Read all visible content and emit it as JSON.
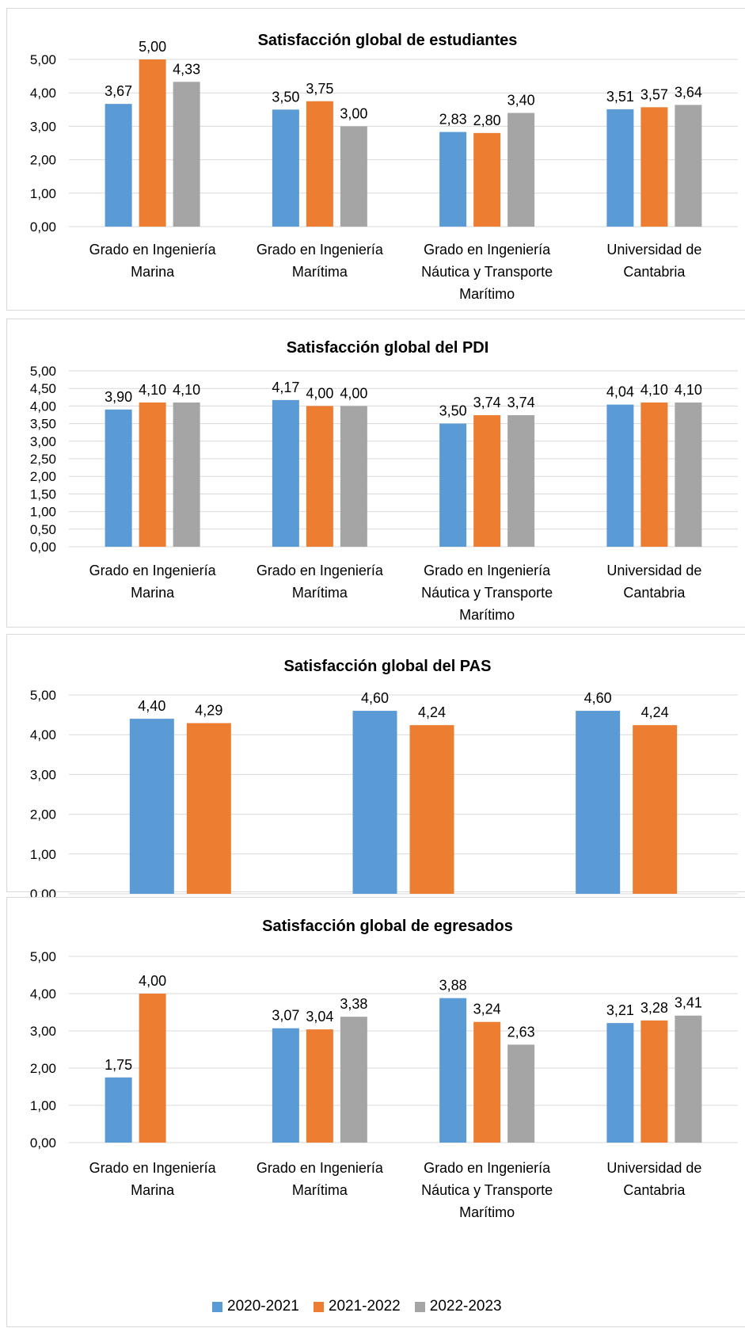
{
  "colors": {
    "series_2020_2021": "#5b9bd5",
    "series_2021_2022": "#ed7d31",
    "series_2022_2023": "#a5a5a5",
    "gridline": "#d9d9d9"
  },
  "legend": {
    "items": [
      {
        "label": "2020-2021",
        "color": "#5b9bd5"
      },
      {
        "label": "2021-2022",
        "color": "#ed7d31"
      },
      {
        "label": "2022-2023",
        "color": "#a5a5a5"
      }
    ]
  },
  "chart_data": [
    {
      "type": "bar",
      "title": "Satisfacción global de estudiantes",
      "categories": [
        [
          "Grado en Ingeniería",
          "Marina"
        ],
        [
          "Grado en Ingeniería",
          "Marítima"
        ],
        [
          "Grado en Ingeniería",
          "Náutica y Transporte",
          "Marítimo"
        ],
        [
          "Universidad de",
          "Cantabria"
        ]
      ],
      "series": [
        {
          "name": "2020-2021",
          "values": [
            3.67,
            3.5,
            2.83,
            3.51
          ],
          "labels": [
            "3,67",
            "3,50",
            "2,83",
            "3,51"
          ]
        },
        {
          "name": "2021-2022",
          "values": [
            5.0,
            3.75,
            2.8,
            3.57
          ],
          "labels": [
            "5,00",
            "3,75",
            "2,80",
            "3,57"
          ]
        },
        {
          "name": "2022-2023",
          "values": [
            4.33,
            3.0,
            3.4,
            3.64
          ],
          "labels": [
            "4,33",
            "3,00",
            "3,40",
            "3,64"
          ]
        }
      ],
      "yticks": [
        "0,00",
        "1,00",
        "2,00",
        "3,00",
        "4,00",
        "5,00"
      ],
      "ylim": [
        0,
        5
      ],
      "grid": true
    },
    {
      "type": "bar",
      "title": "Satisfacción global del PDI",
      "categories": [
        [
          "Grado en Ingeniería",
          "Marina"
        ],
        [
          "Grado en Ingeniería",
          "Marítima"
        ],
        [
          "Grado en Ingeniería",
          "Náutica y Transporte",
          "Marítimo"
        ],
        [
          "Universidad de",
          "Cantabria"
        ]
      ],
      "series": [
        {
          "name": "2020-2021",
          "values": [
            3.9,
            4.17,
            3.5,
            4.04
          ],
          "labels": [
            "3,90",
            "4,17",
            "3,50",
            "4,04"
          ]
        },
        {
          "name": "2021-2022",
          "values": [
            4.1,
            4.0,
            3.74,
            4.1
          ],
          "labels": [
            "4,10",
            "4,00",
            "3,74",
            "4,10"
          ]
        },
        {
          "name": "2022-2023",
          "values": [
            4.1,
            4.0,
            3.74,
            4.1
          ],
          "labels": [
            "4,10",
            "4,00",
            "3,74",
            "4,10"
          ]
        }
      ],
      "yticks": [
        "0,00",
        "0,50",
        "1,00",
        "1,50",
        "2,00",
        "2,50",
        "3,00",
        "3,50",
        "4,00",
        "4,50",
        "5,00"
      ],
      "ylim": [
        0,
        5
      ],
      "grid": true
    },
    {
      "type": "bar",
      "title": "Satisfacción global del PAS",
      "categories": [
        [],
        [],
        []
      ],
      "series": [
        {
          "name": "2020-2021",
          "values": [
            4.4,
            4.6,
            4.6
          ],
          "labels": [
            "4,40",
            "4,60",
            "4,60"
          ]
        },
        {
          "name": "2021-2022",
          "values": [
            4.29,
            4.24,
            4.24
          ],
          "labels": [
            "4,29",
            "4,24",
            "4,24"
          ]
        }
      ],
      "yticks": [
        "0,00",
        "1,00",
        "2,00",
        "3,00",
        "4,00",
        "5,00"
      ],
      "ylim": [
        0,
        5
      ],
      "grid": true
    },
    {
      "type": "bar",
      "title": "Satisfacción global de egresados",
      "categories": [
        [
          "Grado en Ingeniería",
          "Marina"
        ],
        [
          "Grado en Ingeniería",
          "Marítima"
        ],
        [
          "Grado en Ingeniería",
          "Náutica y Transporte",
          "Marítimo"
        ],
        [
          "Universidad de",
          "Cantabria"
        ]
      ],
      "series": [
        {
          "name": "2020-2021",
          "values": [
            1.75,
            3.07,
            3.88,
            3.21
          ],
          "labels": [
            "1,75",
            "3,07",
            "3,88",
            "3,21"
          ]
        },
        {
          "name": "2021-2022",
          "values": [
            4.0,
            3.04,
            3.24,
            3.28
          ],
          "labels": [
            "4,00",
            "3,04",
            "3,24",
            "3,28"
          ]
        },
        {
          "name": "2022-2023",
          "values": [
            null,
            3.38,
            2.63,
            3.41
          ],
          "labels": [
            "",
            "3,38",
            "2,63",
            "3,41"
          ]
        }
      ],
      "yticks": [
        "0,00",
        "1,00",
        "2,00",
        "3,00",
        "4,00",
        "5,00"
      ],
      "ylim": [
        0,
        5
      ],
      "grid": true,
      "legend_position": "bottom"
    }
  ]
}
